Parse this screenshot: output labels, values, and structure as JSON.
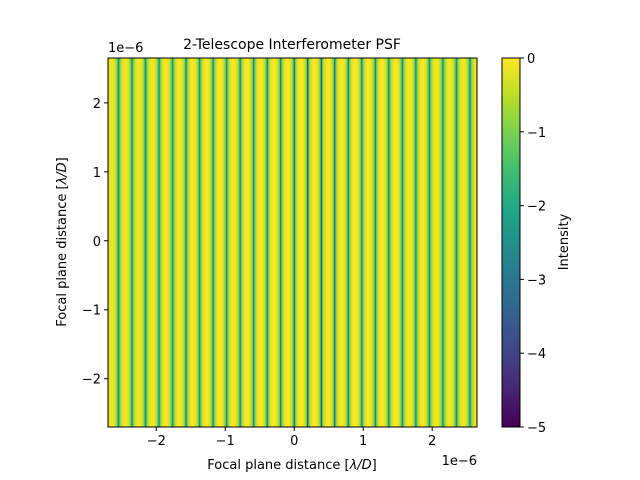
{
  "chart_data": {
    "type": "heatmap",
    "title": "2-Telescope Interferometer PSF",
    "xlabel_prefix": "Focal plane distance [",
    "xlabel_math": "λ/D",
    "xlabel_suffix": "]",
    "ylabel_prefix": "Focal plane distance [",
    "ylabel_math": "λ/D",
    "ylabel_suffix": "]",
    "x_offset_label": "1e−6",
    "y_offset_label": "1e−6",
    "xlim": [
      -2.7,
      2.65
    ],
    "ylim": [
      -2.7,
      2.65
    ],
    "x_ticks": [
      -2,
      -1,
      0,
      1,
      2
    ],
    "x_tick_labels": [
      "−2",
      "−1",
      "0",
      "1",
      "2"
    ],
    "y_ticks": [
      -2,
      -1,
      0,
      1,
      2
    ],
    "y_tick_labels": [
      "−2",
      "−1",
      "0",
      "1",
      "2"
    ],
    "fringe_period": 0.196,
    "fringe_phase_x": 0.098,
    "envelope_width": 5.5,
    "colorbar": {
      "label": "Intensity",
      "range": [
        -5,
        0
      ],
      "ticks": [
        0,
        -1,
        -2,
        -3,
        -4,
        -5
      ],
      "tick_labels": [
        "0",
        "−1",
        "−2",
        "−3",
        "−4",
        "−5"
      ],
      "colormap": "viridis"
    }
  }
}
